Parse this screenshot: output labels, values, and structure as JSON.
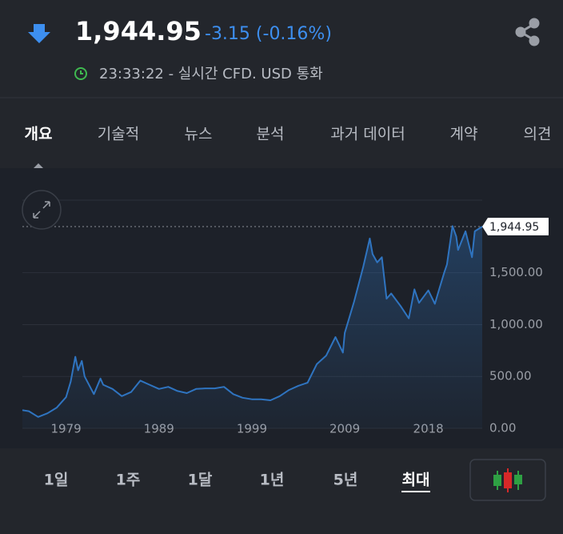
{
  "header": {
    "price": "1,944.95",
    "change": "-3.15 (-0.16%)",
    "timestamp": "23:33:22 - 실시간 CFD. USD 통화"
  },
  "tabs": [
    "개요",
    "기술적",
    "뉴스",
    "분석",
    "과거 데이터",
    "계약",
    "의견"
  ],
  "ranges": [
    "1일",
    "1주",
    "1달",
    "1년",
    "5년",
    "최대"
  ],
  "chart_data": {
    "type": "line",
    "x": [
      1974.3,
      1975,
      1976,
      1977,
      1978,
      1979,
      1979.5,
      1980,
      1980.3,
      1980.7,
      1981,
      1982,
      1982.7,
      1983,
      1984,
      1985,
      1986,
      1987,
      1988,
      1989,
      1990,
      1991,
      1992,
      1993,
      1994,
      1995,
      1996,
      1997,
      1998,
      1999,
      2000,
      2001,
      2002,
      2003,
      2004,
      2005,
      2006,
      2007,
      2008,
      2008.8,
      2009,
      2010,
      2011,
      2011.7,
      2012,
      2012.5,
      2013,
      2013.5,
      2014,
      2015,
      2015.9,
      2016.5,
      2017,
      2018,
      2018.7,
      2019,
      2019.7,
      2020,
      2020.6,
      2021,
      2021.2,
      2022,
      2022.7,
      2023,
      2023.8
    ],
    "values": [
      175,
      165,
      110,
      145,
      200,
      300,
      450,
      690,
      560,
      650,
      500,
      330,
      480,
      420,
      380,
      310,
      350,
      460,
      420,
      380,
      400,
      360,
      340,
      380,
      385,
      385,
      400,
      330,
      295,
      280,
      280,
      270,
      310,
      370,
      410,
      440,
      620,
      700,
      880,
      730,
      920,
      1220,
      1560,
      1830,
      1680,
      1600,
      1650,
      1250,
      1300,
      1180,
      1060,
      1340,
      1210,
      1330,
      1200,
      1290,
      1500,
      1580,
      1950,
      1850,
      1720,
      1900,
      1650,
      1900,
      1944.95
    ],
    "color": "#2f74c0",
    "xlim": [
      1974.3,
      2023.8
    ],
    "ylim": [
      0,
      2200
    ],
    "xticks": [
      1979,
      1989,
      1999,
      2009,
      2018
    ],
    "yticks": [
      {
        "value": 0,
        "label": "0.00"
      },
      {
        "value": 500,
        "label": "500.00"
      },
      {
        "value": 1000,
        "label": "1,000.00"
      },
      {
        "value": 1500,
        "label": "1,500.00"
      }
    ],
    "grid": true,
    "current_price": {
      "value": 1944.95,
      "label": "1,944.95"
    }
  }
}
